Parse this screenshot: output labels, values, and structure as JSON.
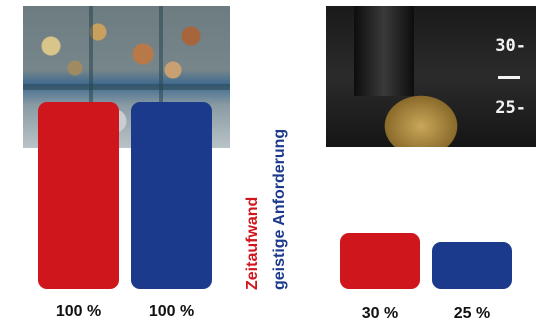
{
  "chart_data": [
    {
      "type": "bar",
      "categories": [
        "Zeitaufwand",
        "geistige Anforderung"
      ],
      "values": [
        100,
        100
      ],
      "value_labels": [
        "100 %",
        "100 %"
      ],
      "ylim": [
        0,
        100
      ]
    },
    {
      "type": "bar",
      "categories": [
        "Zeitaufwand",
        "geistige Anforderung"
      ],
      "values": [
        30,
        25
      ],
      "value_labels": [
        "30 %",
        "25 %"
      ],
      "ylim": [
        0,
        100
      ]
    }
  ],
  "legend": {
    "items": [
      {
        "label": "Zeitaufwand",
        "color": "#d0161d"
      },
      {
        "label": "geistige Anforderung",
        "color": "#1c3a8c"
      }
    ]
  },
  "photo_right": {
    "scale_top": "30-",
    "scale_bottom": "25-"
  },
  "colors": {
    "red": "#d0161d",
    "blue": "#1c3a8c"
  }
}
